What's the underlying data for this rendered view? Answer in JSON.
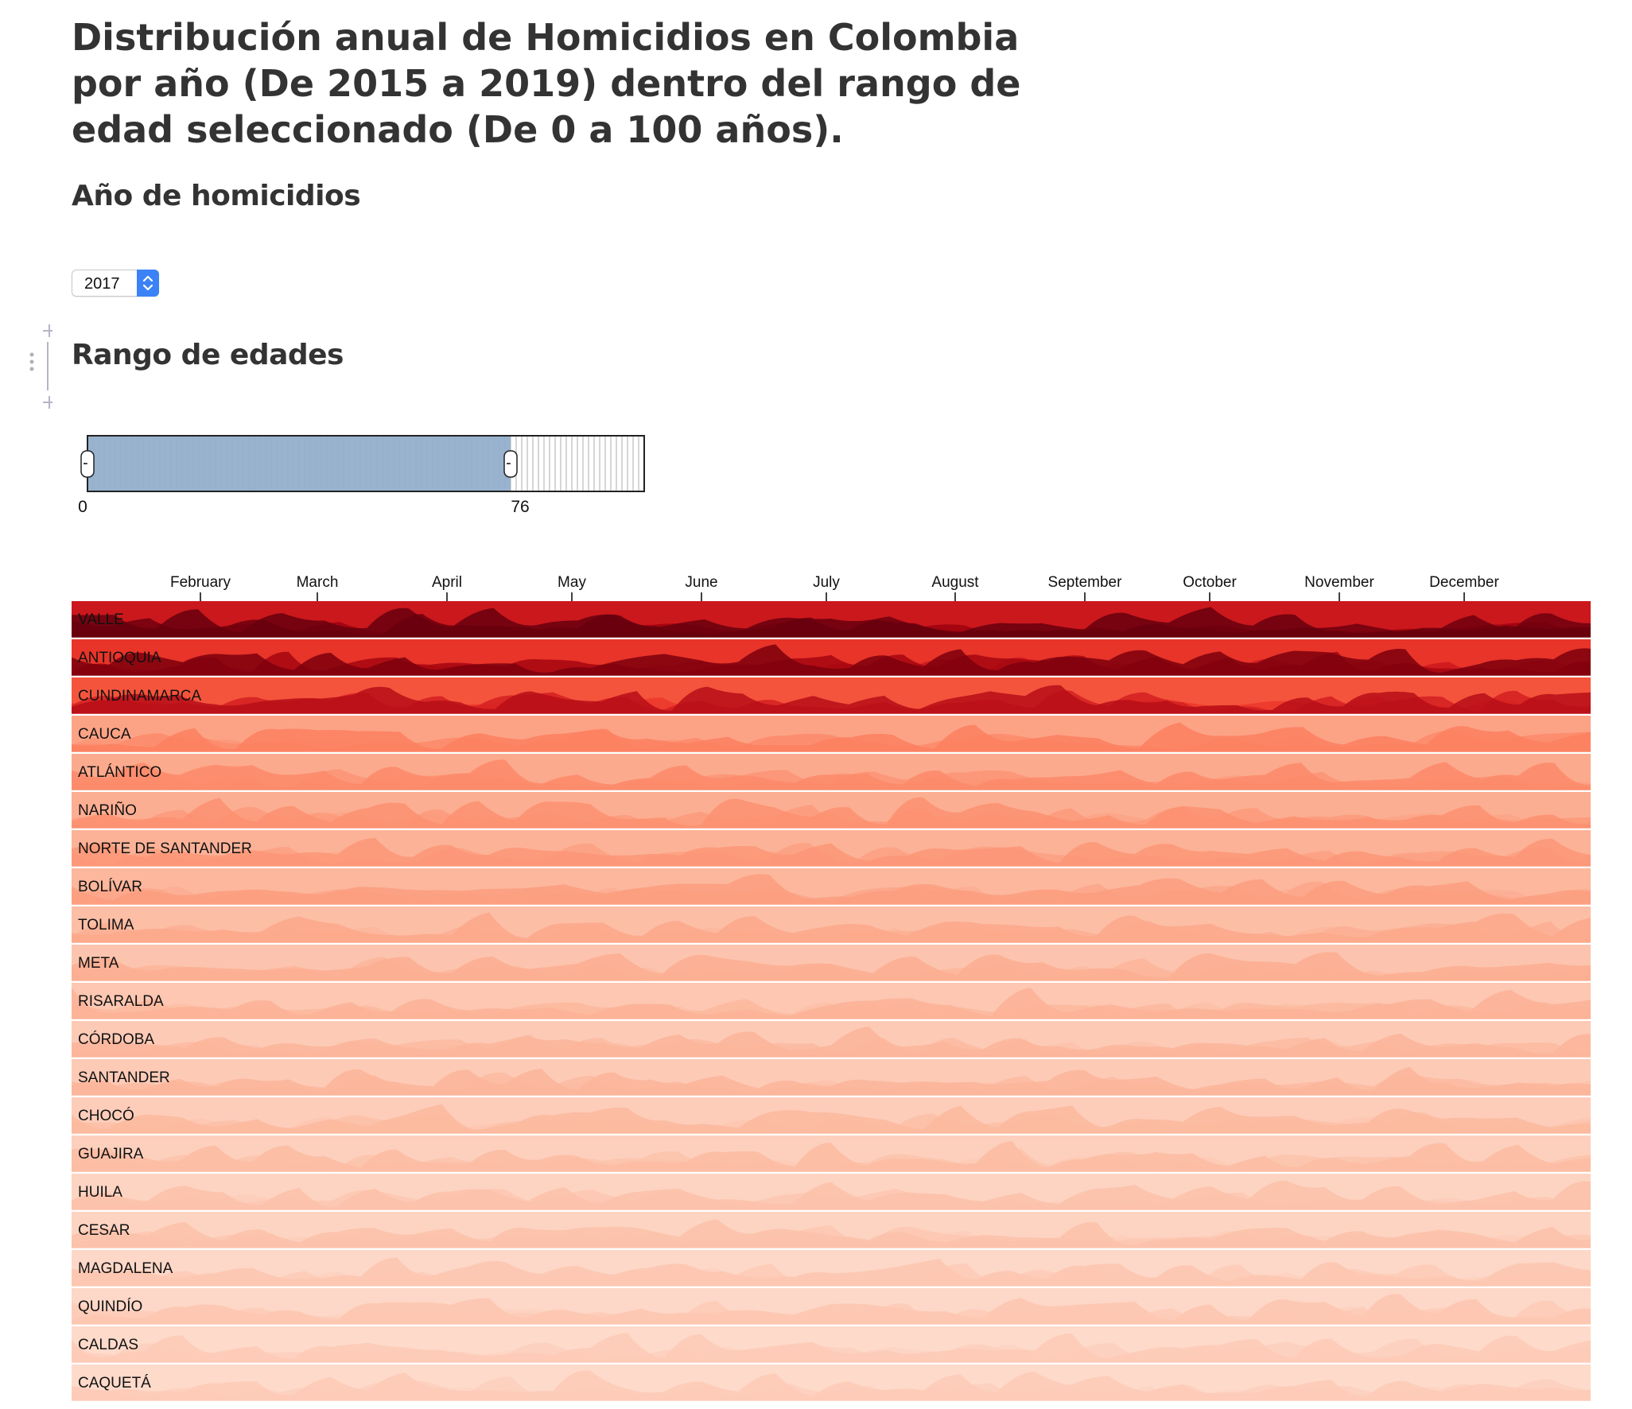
{
  "page": {
    "title": "Distribución anual de Homicidios en Colombia por año (De 2015 a 2019) dentro del rango de edad seleccionado (De 0 a 100 años).",
    "year_heading": "Año de homicidios",
    "range_heading": "Rango de edades"
  },
  "year_selector": {
    "value": "2017",
    "icon": "chevron-up-down-icon"
  },
  "age_range": {
    "min": 0,
    "max": 100,
    "selected_min": 0,
    "selected_max": 76,
    "label_min": "0",
    "label_max": "76",
    "selected_color": "#93afcc"
  },
  "chart_data": {
    "type": "area",
    "x_axis_months": [
      "February",
      "March",
      "April",
      "May",
      "June",
      "July",
      "August",
      "September",
      "October",
      "November",
      "December"
    ],
    "regions": [
      {
        "name": "VALLE",
        "level": 0.95
      },
      {
        "name": "ANTIOQUIA",
        "level": 0.8
      },
      {
        "name": "CUNDINAMARCA",
        "level": 0.66
      },
      {
        "name": "CAUCA",
        "level": 0.3
      },
      {
        "name": "ATLÁNTICO",
        "level": 0.27
      },
      {
        "name": "NARIÑO",
        "level": 0.25
      },
      {
        "name": "NORTE DE SANTANDER",
        "level": 0.23
      },
      {
        "name": "BOLÍVAR",
        "level": 0.21
      },
      {
        "name": "TOLIMA",
        "level": 0.18
      },
      {
        "name": "META",
        "level": 0.16
      },
      {
        "name": "RISARALDA",
        "level": 0.15
      },
      {
        "name": "CÓRDOBA",
        "level": 0.14
      },
      {
        "name": "SANTANDER",
        "level": 0.14
      },
      {
        "name": "CHOCÓ",
        "level": 0.13
      },
      {
        "name": "GUAJIRA",
        "level": 0.12
      },
      {
        "name": "HUILA",
        "level": 0.11
      },
      {
        "name": "CESAR",
        "level": 0.11
      },
      {
        "name": "MAGDALENA",
        "level": 0.1
      },
      {
        "name": "QUINDÍO",
        "level": 0.1
      },
      {
        "name": "CALDAS",
        "level": 0.09
      },
      {
        "name": "CAQUETÁ",
        "level": 0.09
      }
    ],
    "color_scale": [
      "#fff5f0",
      "#fcbba1",
      "#fc9272",
      "#fb6a4a",
      "#ef3b2c",
      "#cb181d",
      "#99000d",
      "#67000d"
    ]
  }
}
